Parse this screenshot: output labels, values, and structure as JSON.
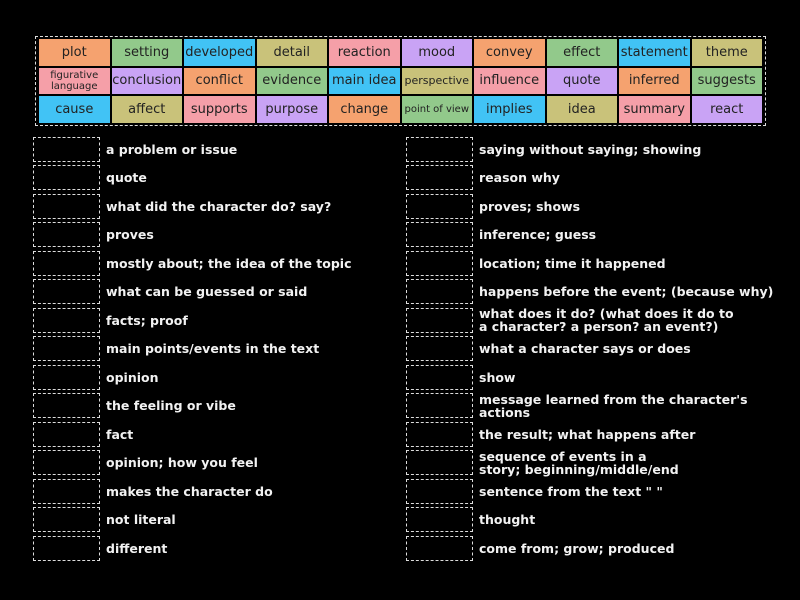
{
  "colors": {
    "orange": "#f5a26f",
    "green": "#92c98b",
    "blue": "#41c3f5",
    "olive": "#c9c27a",
    "pink": "#f59fa8",
    "purple": "#c9a3f5"
  },
  "word_bank": [
    {
      "label": "plot",
      "color": "#f5a26f"
    },
    {
      "label": "setting",
      "color": "#92c98b"
    },
    {
      "label": "developed",
      "color": "#41c3f5"
    },
    {
      "label": "detail",
      "color": "#c9c27a"
    },
    {
      "label": "reaction",
      "color": "#f59fa8"
    },
    {
      "label": "mood",
      "color": "#c9a3f5"
    },
    {
      "label": "convey",
      "color": "#f5a26f"
    },
    {
      "label": "effect",
      "color": "#92c98b"
    },
    {
      "label": "statement",
      "color": "#41c3f5"
    },
    {
      "label": "theme",
      "color": "#c9c27a"
    },
    {
      "label": "figurative language",
      "color": "#f59fa8",
      "size": "small"
    },
    {
      "label": "conclusion",
      "color": "#c9a3f5"
    },
    {
      "label": "conflict",
      "color": "#f5a26f"
    },
    {
      "label": "evidence",
      "color": "#92c98b"
    },
    {
      "label": "main idea",
      "color": "#41c3f5"
    },
    {
      "label": "perspective",
      "color": "#c9c27a",
      "size": "tiny"
    },
    {
      "label": "influence",
      "color": "#f59fa8"
    },
    {
      "label": "quote",
      "color": "#c9a3f5"
    },
    {
      "label": "inferred",
      "color": "#f5a26f"
    },
    {
      "label": "suggests",
      "color": "#92c98b"
    },
    {
      "label": "cause",
      "color": "#41c3f5"
    },
    {
      "label": "affect",
      "color": "#c9c27a"
    },
    {
      "label": "supports",
      "color": "#f59fa8"
    },
    {
      "label": "purpose",
      "color": "#c9a3f5"
    },
    {
      "label": "change",
      "color": "#f5a26f"
    },
    {
      "label": "point of view",
      "color": "#92c98b",
      "size": "small"
    },
    {
      "label": "implies",
      "color": "#41c3f5"
    },
    {
      "label": "idea",
      "color": "#c9c27a"
    },
    {
      "label": "summary",
      "color": "#f59fa8"
    },
    {
      "label": "react",
      "color": "#c9a3f5"
    }
  ],
  "clues_left": [
    "a problem or issue",
    "quote",
    "what did the character do? say?",
    "proves",
    "mostly about; the idea of the topic",
    "what can be guessed or said",
    "facts; proof",
    "main points/events in the text",
    "opinion",
    "the feeling or vibe",
    "fact",
    "opinion; how you feel",
    "makes the character do",
    "not literal",
    "different"
  ],
  "clues_right": [
    "saying without saying; showing",
    "reason why",
    "proves; shows",
    "inference; guess",
    "location; time it happened",
    "happens before the event; (because why)",
    "what does it do? (what does it do to\na character? a person? an event?)",
    "what a character says or does",
    "show",
    "message learned from the character's actions",
    "the result; what happens after",
    "sequence of events in a\nstory; beginning/middle/end",
    "sentence from the text \" \"",
    "thought",
    "come from; grow; produced"
  ]
}
